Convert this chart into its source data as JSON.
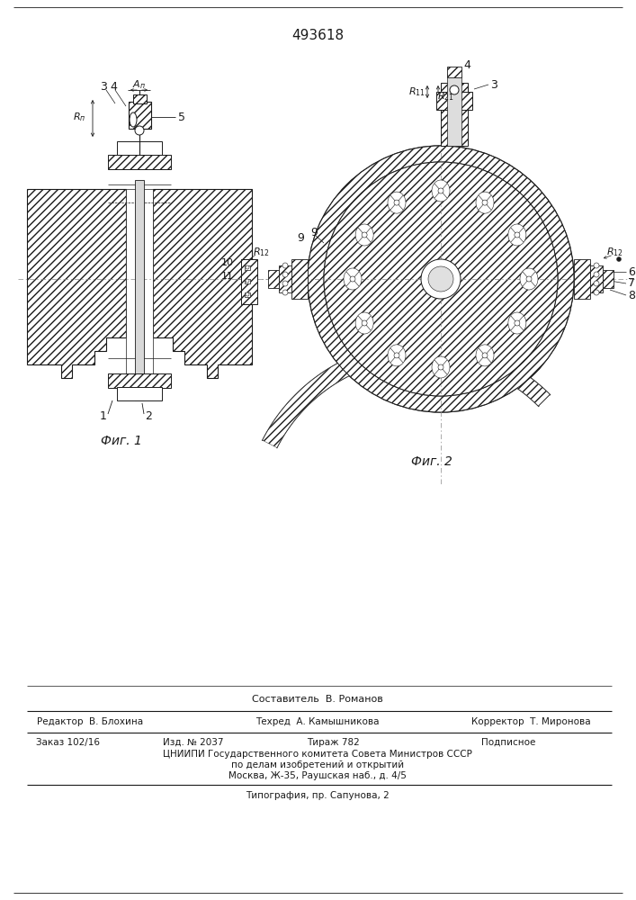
{
  "patent_number": "493618",
  "bg": "#ffffff",
  "lc": "#1a1a1a",
  "fig_width": 7.07,
  "fig_height": 10.0,
  "dpi": 100,
  "footer": {
    "sestavitel": "Составитель  В. Романов",
    "redaktor": "Редактор  В. Блохина",
    "tehred": "Техред  А. Камышникова",
    "korrektor": "Корректор  Т. Миронова",
    "zakaz": "Заказ 102/16",
    "izd": "Изд. № 2037",
    "tirazh": "Тираж 782",
    "podpisnoe": "Подписное",
    "cniip1": "ЦНИИПИ Государственного комитета Совета Министров СССР",
    "cniip2": "по делам изобретений и открытий",
    "cniip3": "Москва, Ж-35, Раушская наб., д. 4/5",
    "tipografia": "Типография, пр. Сапунова, 2"
  },
  "fig1_label": "Фиг. 1",
  "fig2_label": "Фиг. 2"
}
